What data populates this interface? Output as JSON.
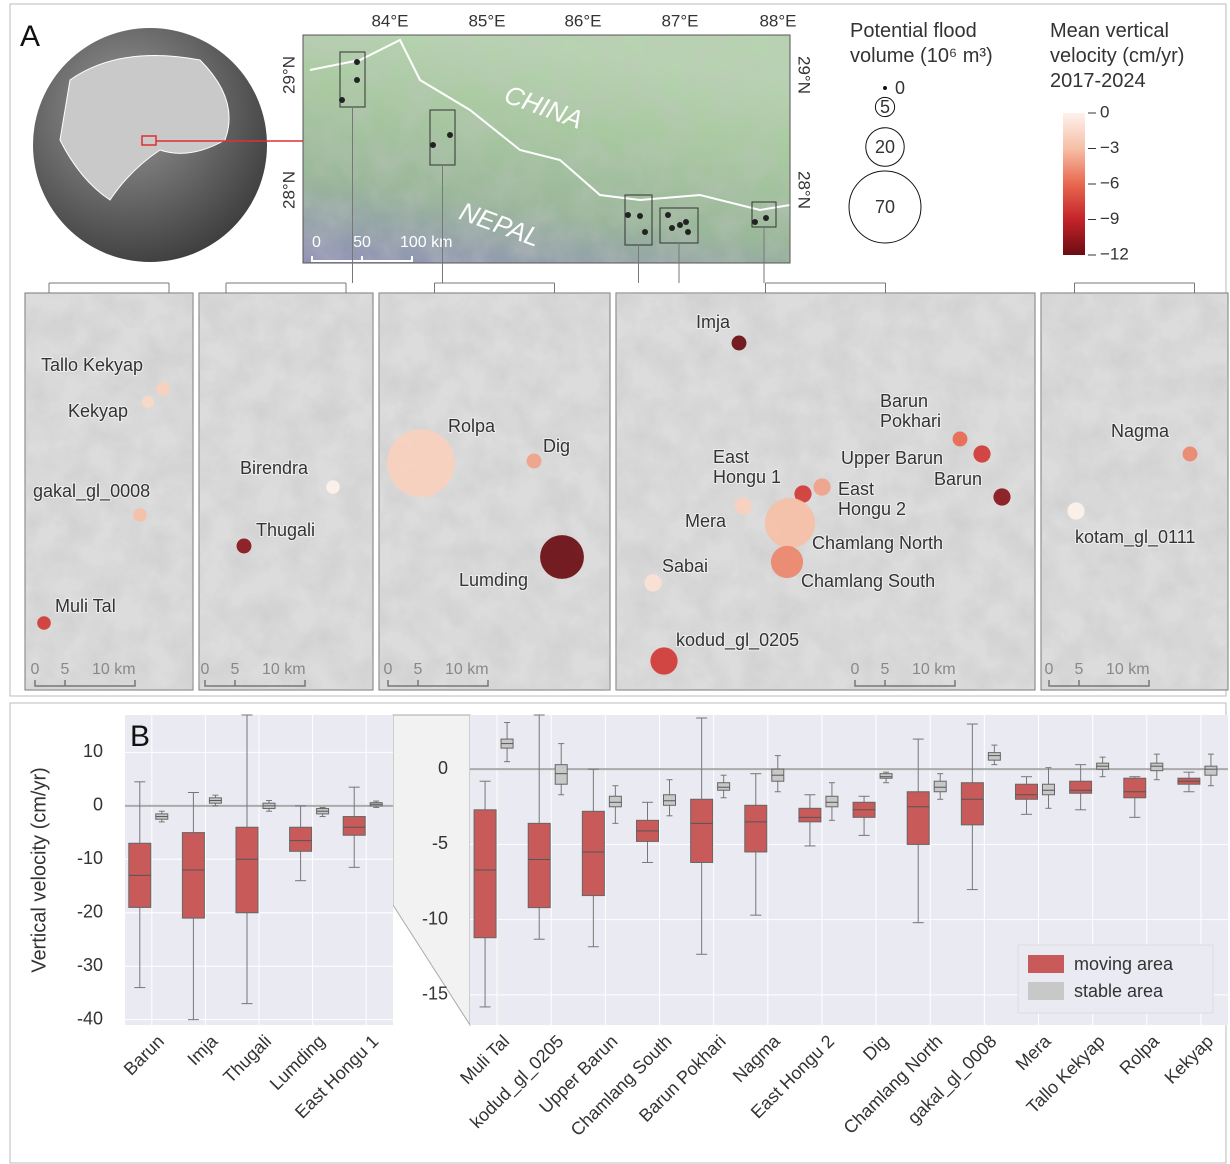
{
  "panel_a": {
    "label": "A",
    "map": {
      "lon_ticks": [
        "84°E",
        "85°E",
        "86°E",
        "87°E",
        "88°E"
      ],
      "lat_ticks": [
        "29°N",
        "28°N"
      ],
      "countries": [
        "CHINA",
        "NEPAL"
      ],
      "scale": [
        "0",
        "50",
        "100 km"
      ]
    },
    "size_legend": {
      "title": "Potential flood volume (10⁶ m³)",
      "sizes": [
        0,
        5,
        20,
        70
      ]
    },
    "color_legend": {
      "title": "Mean vertical velocity (cm/yr) 2017-2024",
      "lim": [
        -12,
        0
      ],
      "ticks": [
        0,
        {
          "value": -3,
          "label": "−3"
        },
        {
          "value": -6,
          "label": "−6"
        },
        {
          "value": -9,
          "label": "−9"
        },
        {
          "value": -12,
          "label": "−12"
        }
      ],
      "colors": [
        "#fdf2ec",
        "#f6bfa6",
        "#e8684f",
        "#c4232a",
        "#6a0d12"
      ]
    },
    "insets": [
      {
        "scale": [
          "0",
          "5",
          "10 km"
        ],
        "lakes": [
          {
            "name": "Tallo Kekyap",
            "volume": 2.5,
            "velocity": -2
          },
          {
            "name": "Kekyap",
            "volume": 2,
            "velocity": -1.5
          },
          {
            "name": "gakal_gl_0008",
            "volume": 2.5,
            "velocity": -3
          },
          {
            "name": "Muli Tal",
            "volume": 2.5,
            "velocity": -8
          }
        ]
      },
      {
        "scale": [
          "0",
          "5",
          "10 km"
        ],
        "lakes": [
          {
            "name": "Birendra",
            "volume": 2.5,
            "velocity": 0
          },
          {
            "name": "Thugali",
            "volume": 3,
            "velocity": -11
          }
        ]
      },
      {
        "scale": [
          "0",
          "5",
          "10 km"
        ],
        "lakes": [
          {
            "name": "Rolpa",
            "volume": 62,
            "velocity": -2
          },
          {
            "name": "Dig",
            "volume": 3,
            "velocity": -4
          },
          {
            "name": "Lumding",
            "volume": 26,
            "velocity": -12
          }
        ]
      },
      {
        "scale": [
          "0",
          "5",
          "10 km"
        ],
        "lakes": [
          {
            "name": "Imja",
            "volume": 3,
            "velocity": -12
          },
          {
            "name": "Barun Pokhari",
            "volume": 3,
            "velocity": -6
          },
          {
            "name": "Upper Barun",
            "volume": 4,
            "velocity": -8
          },
          {
            "name": "Barun",
            "volume": 4,
            "velocity": -11
          },
          {
            "name": "East Hongu 1",
            "volume": 4,
            "velocity": -8
          },
          {
            "name": "East Hongu 2",
            "volume": 4,
            "velocity": -4
          },
          {
            "name": "Mera",
            "volume": 4,
            "velocity": -2
          },
          {
            "name": "Chamlang North",
            "volume": 34,
            "velocity": -3
          },
          {
            "name": "Chamlang South",
            "volume": 14,
            "velocity": -5
          },
          {
            "name": "Sabai",
            "volume": 4,
            "velocity": -1
          },
          {
            "name": "kodud_gl_0205",
            "volume": 10,
            "velocity": -8
          }
        ]
      },
      {
        "scale": [
          "0",
          "5",
          "10 km"
        ],
        "lakes": [
          {
            "name": "Nagma",
            "volume": 3,
            "velocity": -5
          },
          {
            "name": "kotam_gl_0111",
            "volume": 4,
            "velocity": 0
          }
        ]
      }
    ]
  },
  "chart_data": [
    {
      "type": "box",
      "panel_label": "B",
      "ylabel": "Vertical velocity (cm/yr)",
      "categories": [
        "Barun",
        "Imja",
        "Thugali",
        "Lumding",
        "East Hongu 1"
      ],
      "ylim": [
        -41,
        17
      ],
      "yticks": [
        10,
        0,
        -10,
        -20,
        -30,
        -40
      ],
      "grid": true,
      "series": [
        {
          "color": "#c85a5a",
          "values": [
            [
              -34,
              -19,
              -13,
              -7,
              4.5
            ],
            [
              -40,
              -21,
              -12,
              -5,
              2.5
            ],
            [
              -37,
              -20,
              -10,
              -4,
              17
            ],
            [
              -14,
              -8.5,
              -6.5,
              -4,
              0
            ],
            [
              -11.5,
              -5.5,
              -4,
              -2,
              3.5
            ]
          ]
        },
        {
          "color": "#c8c8c8",
          "values": [
            [
              -3,
              -2.5,
              -2,
              -1.5,
              -1
            ],
            [
              0,
              0.5,
              1,
              1.5,
              2
            ],
            [
              -1,
              -0.5,
              0,
              0.5,
              1
            ],
            [
              -2,
              -1.5,
              -1,
              -0.5,
              -0.3
            ],
            [
              -0.3,
              0,
              0.3,
              0.6,
              0.9
            ]
          ]
        }
      ]
    },
    {
      "type": "box",
      "categories": [
        "Muli Tal",
        "kodud_gl_0205",
        "Upper Barun",
        "Chamlang South",
        "Barun Pokhari",
        "Nagma",
        "East Hongu 2",
        "Dig",
        "Chamlang North",
        "gakal_gl_0008",
        "Mera",
        "Tallo Kekyap",
        "Rolpa",
        "Kekyap"
      ],
      "ylim": [
        -17,
        3.6
      ],
      "yticks": [
        0,
        -5,
        -10,
        -15
      ],
      "grid": true,
      "legend": "lower right",
      "series": [
        {
          "name": "moving area",
          "color": "#c85a5a",
          "values": [
            [
              -15.8,
              -11.2,
              -6.7,
              -2.7,
              -0.8
            ],
            [
              -11.3,
              -9.2,
              -6,
              -3.6,
              3.6
            ],
            [
              -11.8,
              -8.4,
              -5.5,
              -2.8,
              0
            ],
            [
              -6.2,
              -4.8,
              -4.1,
              -3.4,
              -2.2
            ],
            [
              -12.3,
              -6.2,
              -3.6,
              -2,
              3.4
            ],
            [
              -9.7,
              -5.5,
              -3.5,
              -2.4,
              -0.3
            ],
            [
              -5.1,
              -3.5,
              -3.2,
              -2.6,
              -1.7
            ],
            [
              -4.4,
              -3.2,
              -2.7,
              -2.2,
              -1.8
            ],
            [
              -10.2,
              -5,
              -2.5,
              -1.5,
              2
            ],
            [
              -8,
              -3.7,
              -2,
              -0.9,
              3
            ],
            [
              -3,
              -2,
              -1.7,
              -1,
              -0.5
            ],
            [
              -2.7,
              -1.6,
              -1.4,
              -0.8,
              0.3
            ],
            [
              -3.2,
              -1.9,
              -1.5,
              -0.6,
              -0.5
            ],
            [
              -1.5,
              -1,
              -0.8,
              -0.6,
              -0.2
            ]
          ]
        },
        {
          "name": "stable area",
          "color": "#c8c8c8",
          "values": [
            [
              0.5,
              1.4,
              1.7,
              2,
              3.1
            ],
            [
              -1.7,
              -1,
              -0.3,
              0.3,
              1.7
            ],
            [
              -3.6,
              -2.5,
              -2.2,
              -1.8,
              -1.1
            ],
            [
              -3.1,
              -2.4,
              -2.1,
              -1.7,
              -0.7
            ],
            [
              -1.9,
              -1.4,
              -1.2,
              -0.9,
              -0.4
            ],
            [
              -1.5,
              -0.8,
              -0.4,
              0,
              0.9
            ],
            [
              -3.4,
              -2.5,
              -2.2,
              -1.8,
              -0.9
            ],
            [
              -0.9,
              -0.6,
              -0.5,
              -0.3,
              -0.2
            ],
            [
              -2,
              -1.5,
              -1.2,
              -0.8,
              -0.3
            ],
            [
              0.3,
              0.6,
              0.9,
              1.1,
              1.6
            ],
            [
              -2.6,
              -1.7,
              -1.4,
              -1,
              0.1
            ],
            [
              -0.5,
              0,
              0.2,
              0.4,
              0.8
            ],
            [
              -0.7,
              -0.1,
              0.2,
              0.4,
              1
            ],
            [
              -1.1,
              -0.4,
              0,
              0.2,
              1
            ]
          ]
        }
      ]
    }
  ]
}
